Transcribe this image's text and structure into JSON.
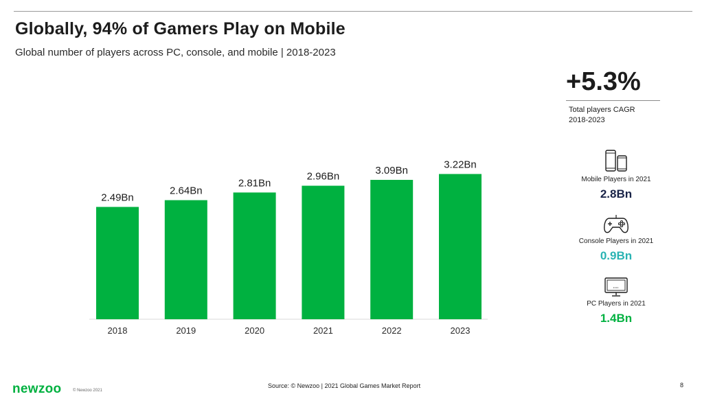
{
  "header": {
    "title": "Globally, 94% of Gamers Play on Mobile",
    "subtitle": "Global number of players across PC, console, and mobile | 2018-2023"
  },
  "chart_data": {
    "type": "bar",
    "categories": [
      "2018",
      "2019",
      "2020",
      "2021",
      "2022",
      "2023"
    ],
    "values": [
      2.49,
      2.64,
      2.81,
      2.96,
      3.09,
      3.22
    ],
    "data_labels": [
      "2.49Bn",
      "2.64Bn",
      "2.81Bn",
      "2.96Bn",
      "3.09Bn",
      "3.22Bn"
    ],
    "unit": "Bn",
    "bar_color": "#00b140",
    "grid": false,
    "legend": "none"
  },
  "sidebar": {
    "cagr": {
      "value": "+5.3%",
      "label_line1": "Total players CAGR",
      "label_line2": "2018-2023"
    },
    "stats": {
      "mobile": {
        "icon": "mobile-devices-icon",
        "label": "Mobile Players in 2021",
        "value": "2.8Bn",
        "color": "#1a2448"
      },
      "console": {
        "icon": "gamepad-icon",
        "label": "Console Players in 2021",
        "value": "0.9Bn",
        "color": "#2ab3b3"
      },
      "pc": {
        "icon": "pc-monitor-icon",
        "label": "PC Players in 2021",
        "value": "1.4Bn",
        "color": "#00b140"
      }
    }
  },
  "footer": {
    "logo": "newzoo",
    "copyright": "© Newzoo 2021",
    "source": "Source: © Newzoo | 2021 Global Games Market Report",
    "page_number": "8"
  }
}
